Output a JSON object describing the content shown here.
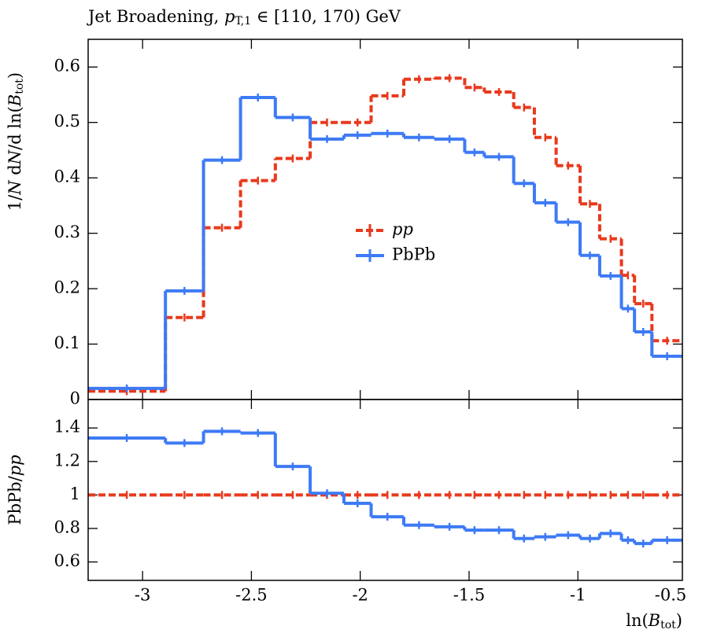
{
  "chart_data": [
    {
      "type": "histogram",
      "title": [
        "Jet Broadening, ",
        "p",
        "T,1",
        " ∈ [110, 170) GeV"
      ],
      "ylabel": [
        "1/",
        "N",
        " d",
        "N",
        "/d ln(",
        "B",
        "tot",
        ")"
      ],
      "bins": [
        -3.25,
        -2.895,
        -2.72,
        -2.55,
        -2.39,
        -2.23,
        -2.075,
        -1.95,
        -1.8,
        -1.66,
        -1.52,
        -1.43,
        -1.295,
        -1.2,
        -1.1,
        -0.99,
        -0.9,
        -0.8,
        -0.74,
        -0.66,
        -0.52
      ],
      "series": [
        {
          "name": "pp",
          "color": "#e8391c",
          "dashed": true,
          "values": [
            0.015,
            0.148,
            0.31,
            0.395,
            0.435,
            0.5,
            0.5,
            0.548,
            0.578,
            0.58,
            0.563,
            0.555,
            0.527,
            0.473,
            0.422,
            0.353,
            0.29,
            0.224,
            0.173,
            0.106
          ]
        },
        {
          "name": "PbPb",
          "color": "#3d7af5",
          "dashed": false,
          "values": [
            0.02,
            0.196,
            0.432,
            0.545,
            0.509,
            0.47,
            0.477,
            0.48,
            0.473,
            0.47,
            0.446,
            0.438,
            0.39,
            0.355,
            0.32,
            0.26,
            0.223,
            0.164,
            0.122,
            0.078
          ]
        }
      ],
      "xlim": [
        -3.25,
        -0.52
      ],
      "xticks": [
        -3,
        -2.5,
        -2,
        -1.5,
        -1,
        -0.5
      ],
      "ylim": [
        0,
        0.65
      ],
      "yticks": [
        0,
        0.1,
        0.2,
        0.3,
        0.4,
        0.5,
        0.6
      ],
      "legend": "center"
    },
    {
      "type": "histogram",
      "ylabel": [
        "PbPb/",
        "pp"
      ],
      "xlabel": [
        "ln(",
        "B",
        "tot",
        ")"
      ],
      "bins": [
        -3.25,
        -2.895,
        -2.72,
        -2.55,
        -2.39,
        -2.23,
        -2.075,
        -1.95,
        -1.8,
        -1.66,
        -1.52,
        -1.43,
        -1.295,
        -1.2,
        -1.1,
        -0.99,
        -0.9,
        -0.8,
        -0.74,
        -0.66,
        -0.52
      ],
      "series": [
        {
          "color": "#e8391c",
          "dashed": true,
          "values": [
            1,
            1,
            1,
            1,
            1,
            1,
            1,
            1,
            1,
            1,
            1,
            1,
            1,
            1,
            1,
            1,
            1,
            1,
            1,
            1
          ]
        },
        {
          "color": "#3d7af5",
          "dashed": false,
          "values": [
            1.34,
            1.31,
            1.38,
            1.37,
            1.17,
            1.01,
            0.95,
            0.87,
            0.82,
            0.81,
            0.79,
            0.79,
            0.74,
            0.75,
            0.76,
            0.74,
            0.77,
            0.73,
            0.71,
            0.73
          ]
        }
      ],
      "xlim": [
        -3.25,
        -0.52
      ],
      "xticks": [
        -3,
        -2.5,
        -2,
        -1.5,
        -1,
        -0.5
      ],
      "ylim": [
        0.49,
        1.57
      ],
      "yticks": [
        0.6,
        0.8,
        1,
        1.2,
        1.4
      ]
    }
  ]
}
